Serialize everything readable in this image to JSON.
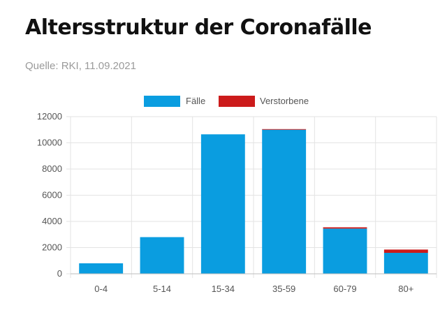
{
  "header": {
    "title": "Altersstruktur der Coronafälle",
    "source": "Quelle: RKI, 11.09.2021"
  },
  "chart_data": {
    "type": "bar",
    "stacked": true,
    "categories": [
      "0-4",
      "5-14",
      "15-34",
      "35-59",
      "60-79",
      "80+"
    ],
    "series": [
      {
        "name": "Fälle",
        "color": "#0a9de0",
        "values": [
          800,
          2800,
          10650,
          11000,
          3450,
          1600
        ]
      },
      {
        "name": "Verstorbene",
        "color": "#cc1b1b",
        "values": [
          0,
          0,
          0,
          50,
          100,
          250
        ]
      }
    ],
    "ylim": [
      0,
      12000
    ],
    "yticks": [
      0,
      2000,
      4000,
      6000,
      8000,
      10000,
      12000
    ],
    "grid": true,
    "legend": "top-center"
  }
}
